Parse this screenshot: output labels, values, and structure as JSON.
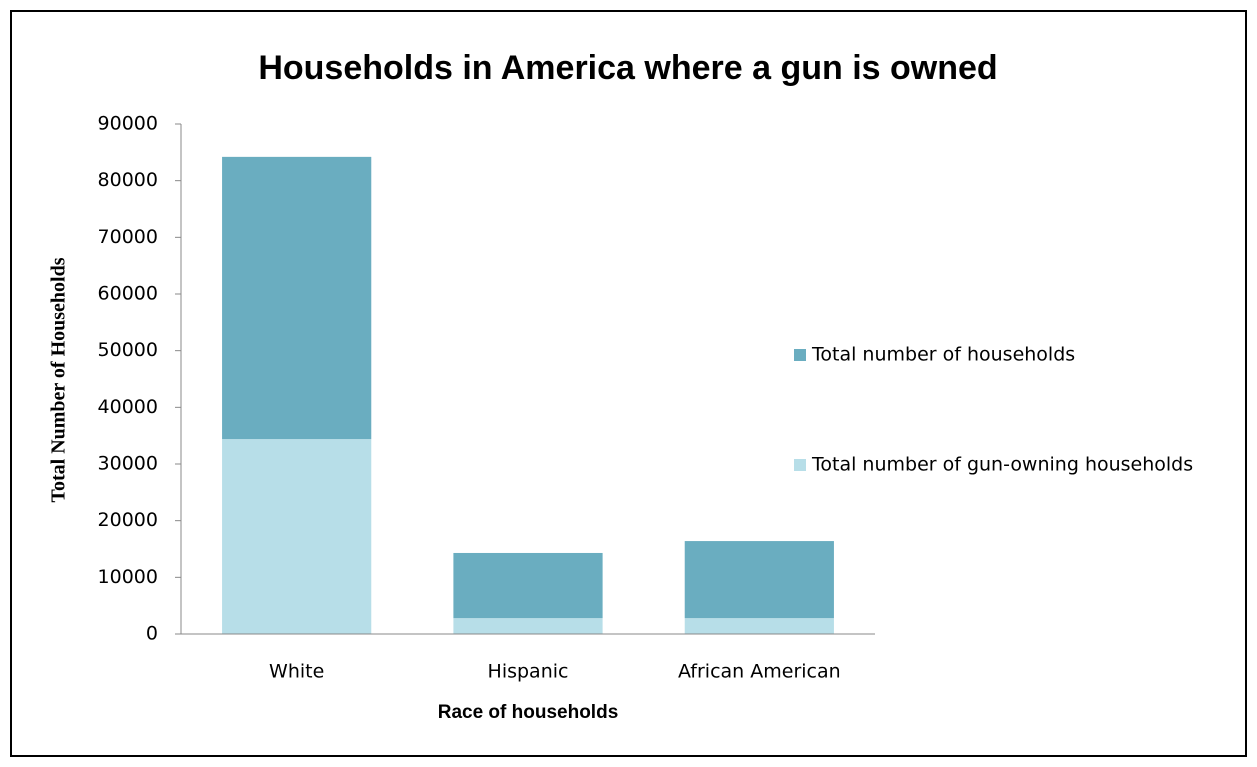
{
  "chart_data": {
    "type": "stacked_bar",
    "title": "Households  in America where a gun is owned",
    "x_label": "Race of households",
    "y_label": "Total Number of Households",
    "categories": [
      "White",
      "Hispanic",
      "African American"
    ],
    "series": [
      {
        "name": "Total number of gun-owning households",
        "color": "#b7dee8",
        "values": [
          34400,
          2800,
          2800
        ]
      },
      {
        "name": "Total number of households",
        "color": "#6aadc0",
        "values": [
          49800,
          11500,
          13600
        ]
      }
    ],
    "ylim": [
      0,
      90000
    ],
    "yticks": [
      0,
      10000,
      20000,
      30000,
      40000,
      50000,
      60000,
      70000,
      80000,
      90000
    ],
    "legend": "right"
  }
}
